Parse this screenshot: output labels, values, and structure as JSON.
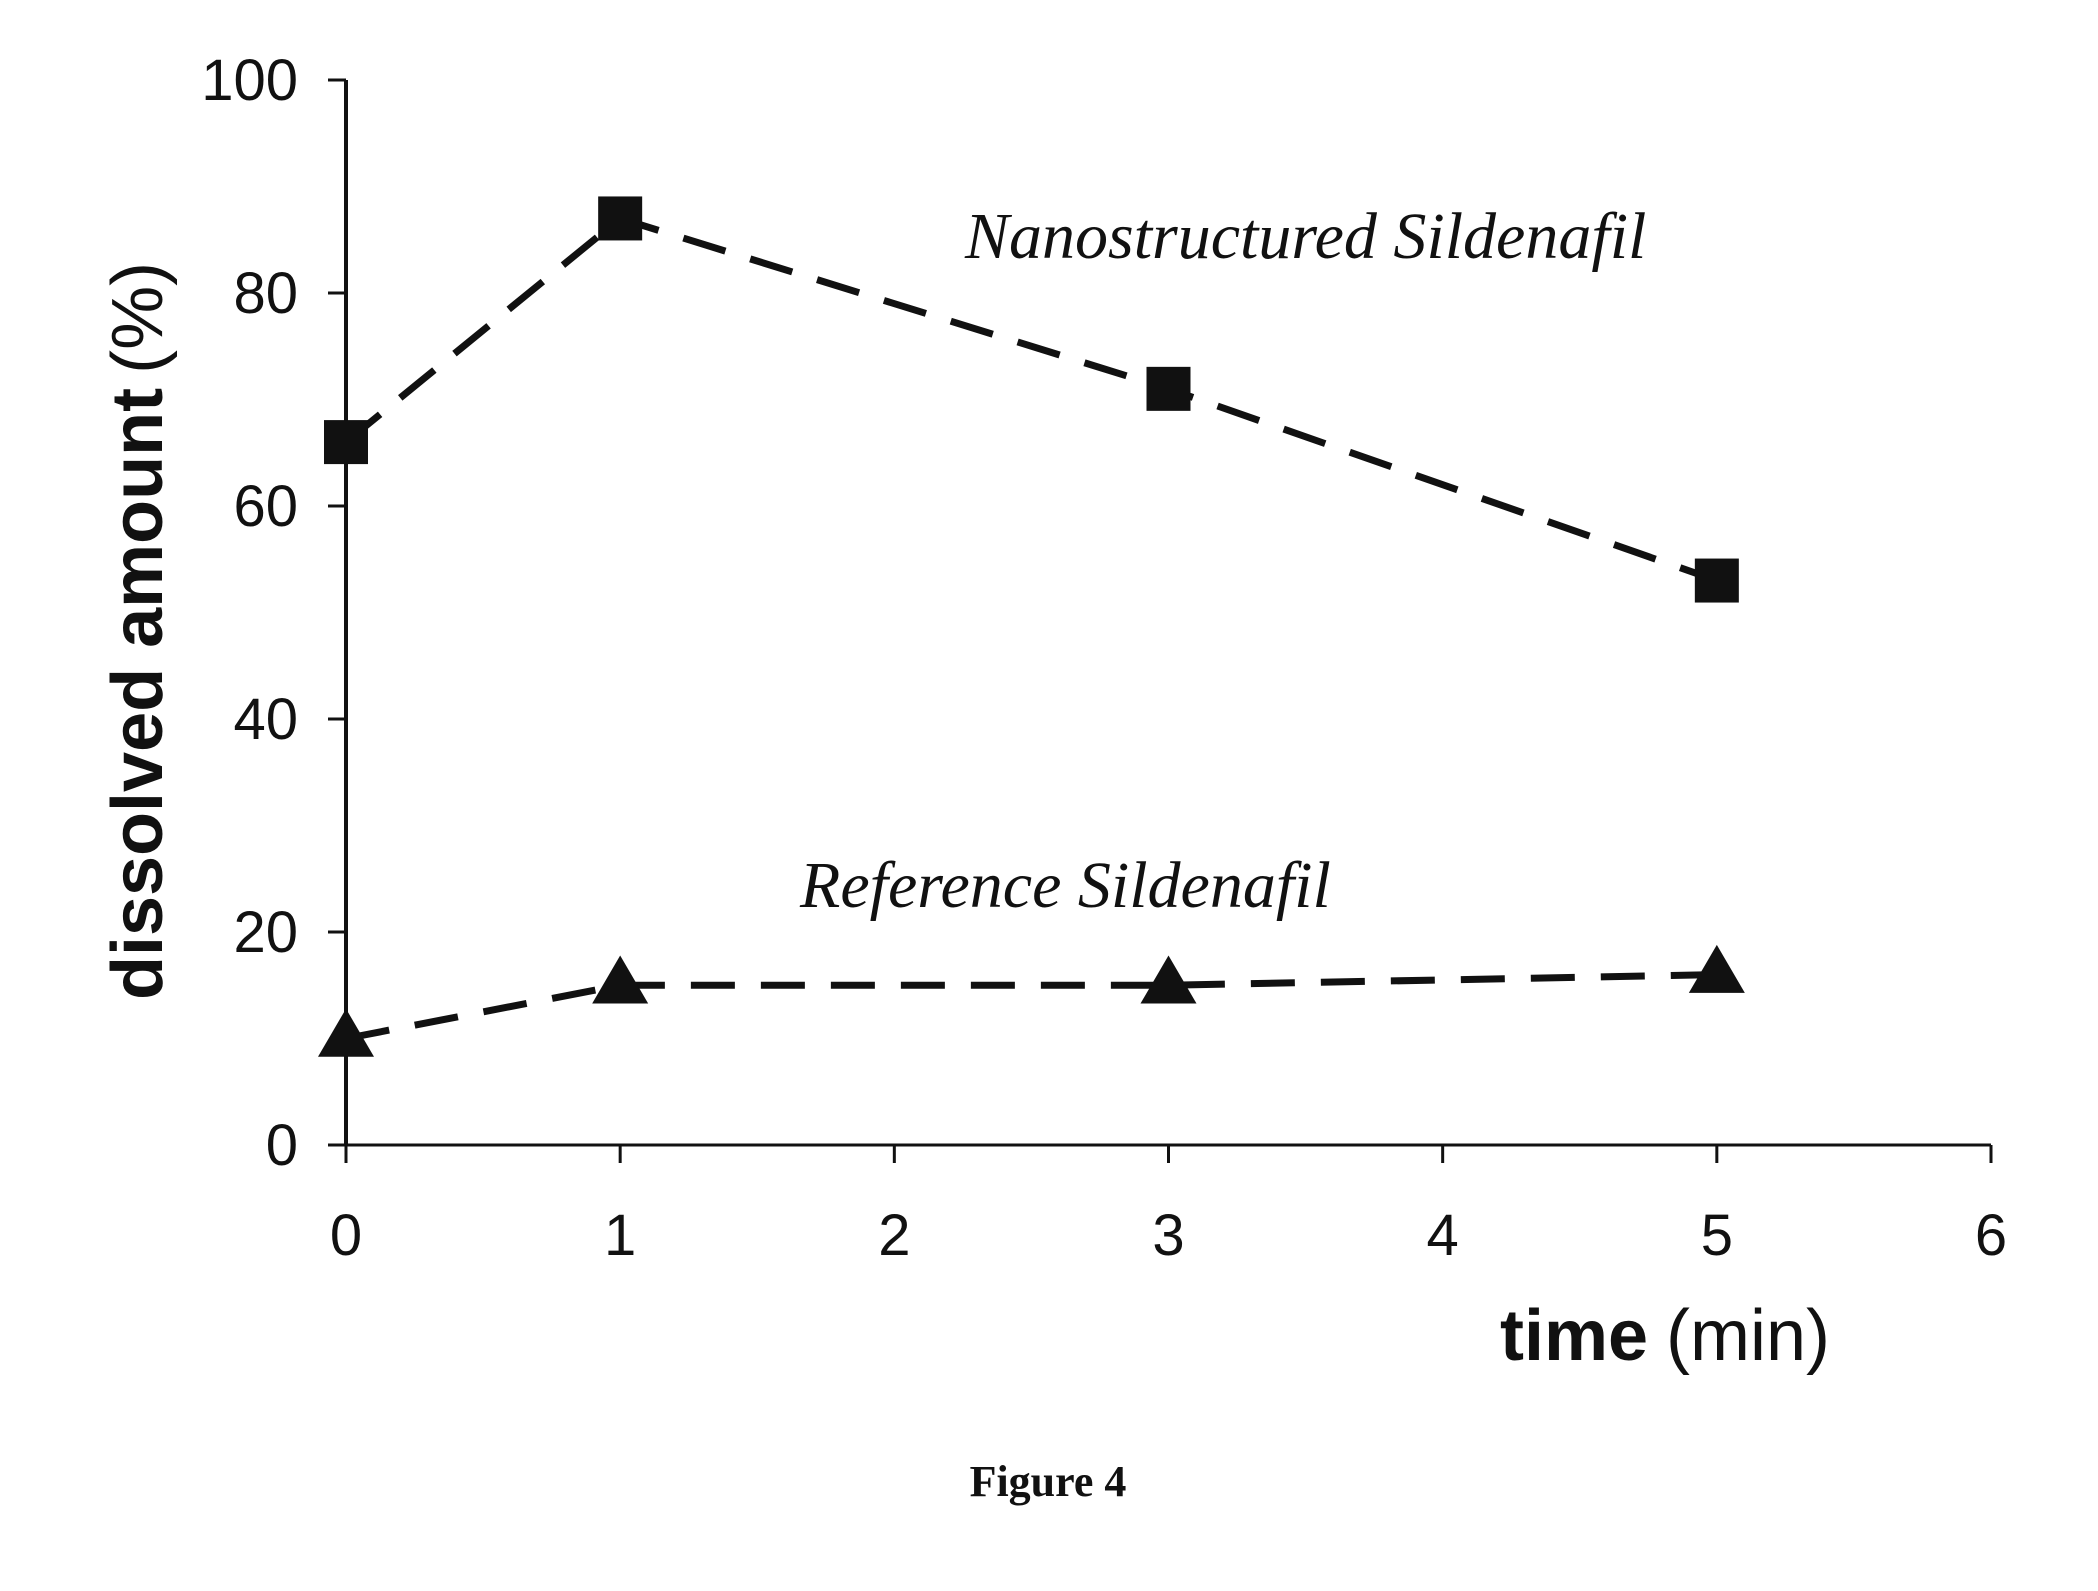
{
  "chart_data": {
    "type": "line",
    "x_label_bold": "time",
    "x_label_unit": "(min)",
    "y_label_bold": "dissolved amount",
    "y_label_unit": "(%)",
    "xlim": [
      0,
      6
    ],
    "ylim": [
      0,
      100
    ],
    "x_ticks": [
      0,
      1,
      2,
      3,
      4,
      5,
      6
    ],
    "y_ticks": [
      0,
      20,
      40,
      60,
      80,
      100
    ],
    "grid": false,
    "series": [
      {
        "name": "Nanostructured Sildenafil",
        "marker": "square",
        "line_style": "dashed",
        "x": [
          0,
          1,
          3,
          5
        ],
        "y": [
          66,
          87,
          71,
          53
        ]
      },
      {
        "name": "Reference Sildenafil",
        "marker": "triangle",
        "line_style": "dashed",
        "x": [
          0,
          1,
          3,
          5
        ],
        "y": [
          10,
          15,
          15,
          16
        ]
      }
    ]
  },
  "caption": "Figure 4"
}
